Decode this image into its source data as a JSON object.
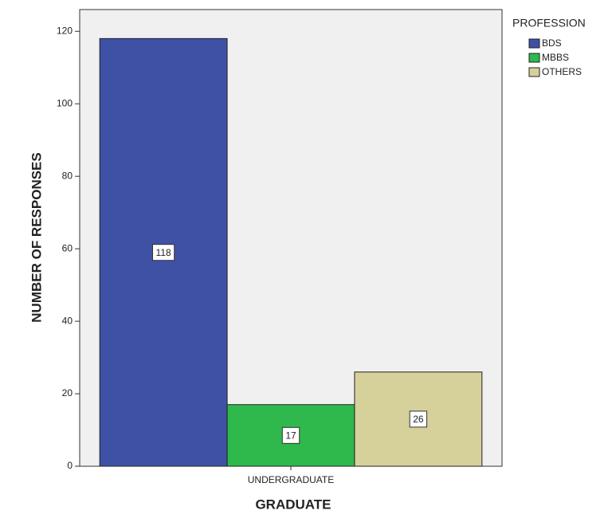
{
  "chart_data": {
    "type": "bar",
    "x_label": "GRADUATE",
    "y_label": "NUMBER OF RESPONSES",
    "categories": [
      "UNDERGRADUATE"
    ],
    "legend_title": "PROFESSION",
    "series": [
      {
        "name": "BDS",
        "color": "#3f51a5",
        "values": [
          118
        ]
      },
      {
        "name": "MBBS",
        "color": "#2fb84b",
        "values": [
          17
        ]
      },
      {
        "name": "OTHERS",
        "color": "#d6d09b",
        "values": [
          26
        ]
      }
    ],
    "ylim": [
      0,
      126
    ],
    "yticks": [
      0,
      20,
      40,
      60,
      80,
      100,
      120
    ],
    "legend": "right",
    "data_labels": true
  }
}
